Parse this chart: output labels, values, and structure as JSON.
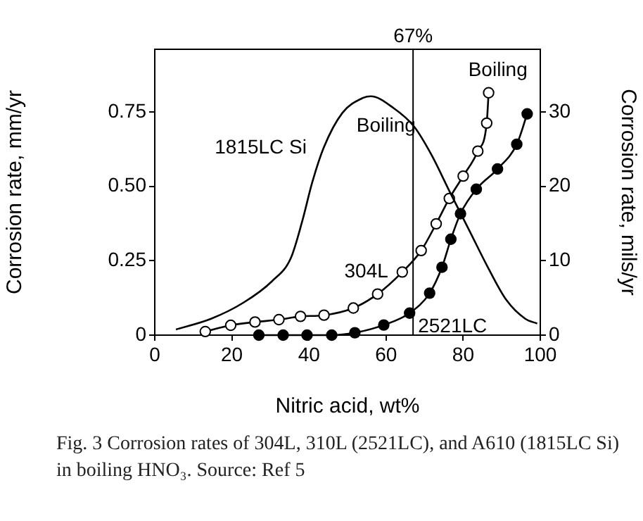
{
  "chart_data": {
    "type": "line",
    "xlabel": "Nitric acid, wt%",
    "ylabel": "Corrosion rate, mm/yr",
    "y2label": "Corrosion rate, mils/yr",
    "xlim": [
      0,
      100
    ],
    "xticks": [
      0,
      20,
      40,
      60,
      80,
      100
    ],
    "ylim": [
      0,
      0.96
    ],
    "yticks": [
      0,
      0.25,
      {
        "value": 0.5,
        "label": "0.50"
      },
      0.75
    ],
    "y2lim": [
      0,
      38.4
    ],
    "y2ticks": [
      0,
      10,
      20,
      30
    ],
    "grid": false,
    "legend": false,
    "line_style": "solid",
    "series": [
      {
        "name": "1815LC Si",
        "color": "#000000",
        "marker": "none",
        "x": [
          5.5,
          14.6,
          23.1,
          30.4,
          35.3,
          38.3,
          40.8,
          43.8,
          48.7,
          54.1,
          56.0,
          62.0,
          67.3,
          71.8,
          76.6,
          81.5,
          86.4,
          91.2,
          96.1,
          99.2
        ],
        "values": [
          0.019,
          0.055,
          0.11,
          0.181,
          0.259,
          0.385,
          0.511,
          0.629,
          0.747,
          0.797,
          0.802,
          0.762,
          0.7,
          0.605,
          0.479,
          0.354,
          0.228,
          0.118,
          0.055,
          0.039
        ]
      },
      {
        "name": "304L",
        "color": "#000000",
        "marker": "circle",
        "x": [
          13.1,
          19.7,
          26.0,
          32.2,
          37.8,
          43.9,
          51.5,
          57.8,
          64.2,
          69.1,
          73.0,
          76.4,
          80.0,
          83.8,
          86.1,
          86.6
        ],
        "values": [
          0.012,
          0.033,
          0.044,
          0.052,
          0.063,
          0.067,
          0.091,
          0.138,
          0.212,
          0.284,
          0.374,
          0.459,
          0.534,
          0.618,
          0.712,
          0.814
        ]
      },
      {
        "name": "2521LC",
        "color": "#000000",
        "marker": "circle",
        "x": [
          27.0,
          33.3,
          39.5,
          45.9,
          51.9,
          59.4,
          66.1,
          71.3,
          74.5,
          76.8,
          79.3,
          83.4,
          88.9,
          93.9,
          96.6
        ],
        "values": [
          0,
          0,
          0,
          0,
          0.008,
          0.034,
          0.074,
          0.141,
          0.228,
          0.322,
          0.408,
          0.49,
          0.558,
          0.641,
          0.743
        ]
      }
    ],
    "ref_lines": [
      {
        "axis": "x",
        "value": 67,
        "label": "67%",
        "color": "#000000"
      }
    ],
    "annotations": [
      "Boiling",
      "Boiling",
      "Fig. 3 Corrosion rates of 304L, 310L (2521LC), and A610 (1815LC Si) in boiling HNO₃. Source: Ref 5"
    ]
  }
}
